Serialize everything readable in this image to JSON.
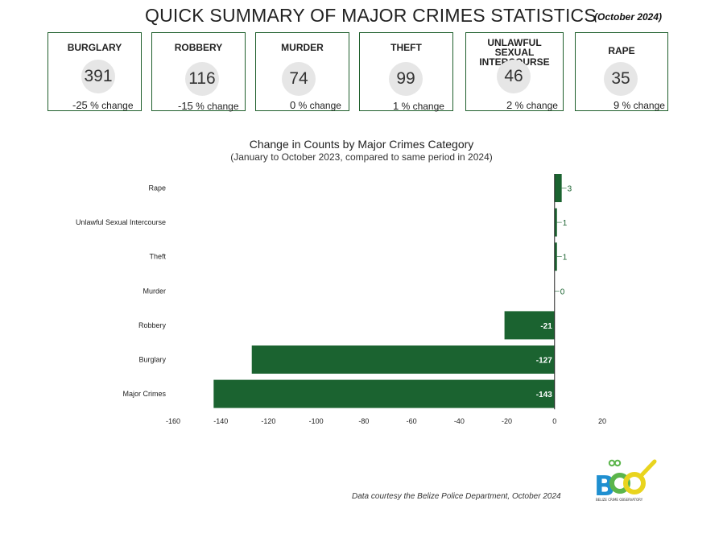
{
  "header": {
    "title": "QUICK SUMMARY OF MAJOR CRIMES STATISTICS",
    "date": "(October 2024)"
  },
  "cards": [
    {
      "name": "BURGLARY",
      "count": "391",
      "change": "-25",
      "change_label": "% change"
    },
    {
      "name": "ROBBERY",
      "count": "116",
      "change": "-15",
      "change_label": "% change"
    },
    {
      "name": "MURDER",
      "count": "74",
      "change": "0",
      "change_label": "% change"
    },
    {
      "name": "THEFT",
      "count": "99",
      "change": "1",
      "change_label": "% change"
    },
    {
      "name": "UNLAWFUL SEXUAL INTERCOURSE",
      "count": "46",
      "change": "2",
      "change_label": "% change"
    },
    {
      "name": "RAPE",
      "count": "35",
      "change": "9",
      "change_label": "% change"
    }
  ],
  "chart_data": {
    "type": "bar",
    "orientation": "horizontal",
    "title": "Change in Counts by Major Crimes Category",
    "subtitle": "(January  to October 2023, compared to same period in 2024)",
    "categories": [
      "Rape",
      "Unlawful Sexual Intercourse",
      "Theft",
      "Murder",
      "Robbery",
      "Burglary",
      "Major Crimes"
    ],
    "values": [
      3,
      1,
      1,
      0,
      -21,
      -127,
      -143
    ],
    "xlim": [
      -160,
      20
    ],
    "xticks": [
      -160,
      -140,
      -120,
      -100,
      -80,
      -60,
      -40,
      -20,
      0,
      20
    ],
    "grid": false,
    "bar_color": "#1b6330"
  },
  "footer": {
    "credit": "Data courtesy the Belize Police Department, October 2024",
    "logo_text": "BELIZE CRIME OBSERVATORY"
  },
  "colors": {
    "accent": "#1b6330",
    "card_border": "#1f5f2c",
    "bubble": "#e6e6e6",
    "logo_blue": "#1f8fd0",
    "logo_yellow": "#e9d41e",
    "logo_green": "#5bb54b"
  }
}
